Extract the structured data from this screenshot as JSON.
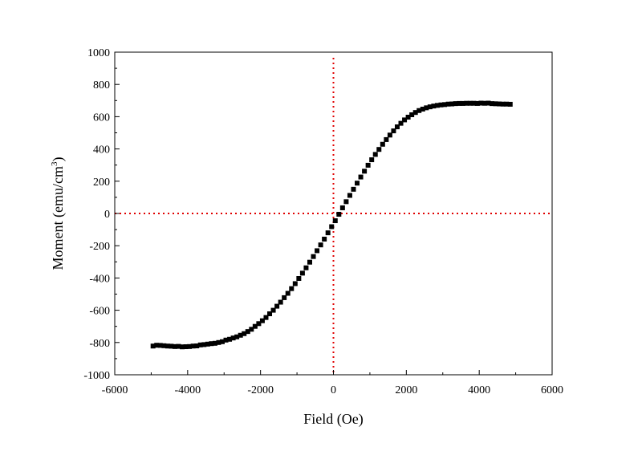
{
  "chart_data": {
    "type": "scatter",
    "title": "",
    "xlabel": "Field (Oe)",
    "ylabel": "Moment (emu/cm",
    "ylabel_superscript": "3",
    "ylabel_suffix": ")",
    "xlim": [
      -6000,
      6000
    ],
    "ylim": [
      -1000,
      1000
    ],
    "x_ticks": [
      -6000,
      -4000,
      -2000,
      0,
      2000,
      4000,
      6000
    ],
    "x_tick_labels": [
      "-6000",
      "-4000",
      "-2000",
      "0",
      "2000",
      "4000",
      "6000"
    ],
    "y_ticks": [
      -1000,
      -800,
      -600,
      -400,
      -200,
      0,
      200,
      400,
      600,
      800,
      1000
    ],
    "y_tick_labels": [
      "-1000",
      "-800",
      "-600",
      "-400",
      "-200",
      "0",
      "200",
      "400",
      "600",
      "800",
      "1000"
    ],
    "grid": false,
    "legend": "none",
    "marker": "square",
    "marker_color": "#000000",
    "reference_line_color": "#e00000",
    "reference_lines": {
      "x": 0,
      "y": 0
    },
    "series": [
      {
        "x": [
          -4950,
          -4850,
          -4750,
          -4650,
          -4550,
          -4450,
          -4350,
          -4250,
          -4150,
          -4050,
          -3950,
          -3850,
          -3750,
          -3650,
          -3550,
          -3450,
          -3350,
          -3250,
          -3150,
          -3050,
          -2950,
          -2850,
          -2750,
          -2650,
          -2550,
          -2450,
          -2350,
          -2250,
          -2150,
          -2050,
          -1950,
          -1850,
          -1750,
          -1650,
          -1550,
          -1450,
          -1350,
          -1250,
          -1150,
          -1050,
          -950,
          -850,
          -750,
          -650,
          -550,
          -450,
          -350,
          -250,
          -150,
          -50,
          50,
          150,
          250,
          350,
          450,
          550,
          650,
          750,
          850,
          950,
          1050,
          1150,
          1250,
          1350,
          1450,
          1550,
          1650,
          1750,
          1850,
          1950,
          2050,
          2150,
          2250,
          2350,
          2450,
          2550,
          2650,
          2750,
          2850,
          2950,
          3050,
          3150,
          3250,
          3350,
          3450,
          3550,
          3650,
          3750,
          3850,
          3950,
          4050,
          4150,
          4250,
          4350,
          4450,
          4550,
          4650,
          4750,
          4850
        ],
        "y": [
          -822,
          -817,
          -818,
          -820,
          -822,
          -823,
          -825,
          -824,
          -827,
          -826,
          -825,
          -822,
          -821,
          -815,
          -813,
          -810,
          -807,
          -805,
          -800,
          -795,
          -785,
          -780,
          -772,
          -765,
          -755,
          -745,
          -732,
          -718,
          -700,
          -683,
          -665,
          -645,
          -622,
          -600,
          -575,
          -550,
          -522,
          -495,
          -466,
          -435,
          -403,
          -370,
          -337,
          -302,
          -267,
          -231,
          -195,
          -159,
          -120,
          -82,
          -45,
          -5,
          35,
          73,
          112,
          150,
          188,
          226,
          262,
          299,
          333,
          366,
          397,
          429,
          458,
          486,
          512,
          537,
          559,
          580,
          597,
          612,
          626,
          638,
          647,
          655,
          661,
          666,
          670,
          673,
          675,
          678,
          679,
          681,
          682,
          682,
          683,
          683,
          683,
          682,
          684,
          683,
          684,
          681,
          680,
          679,
          678,
          678,
          677
        ]
      }
    ]
  }
}
